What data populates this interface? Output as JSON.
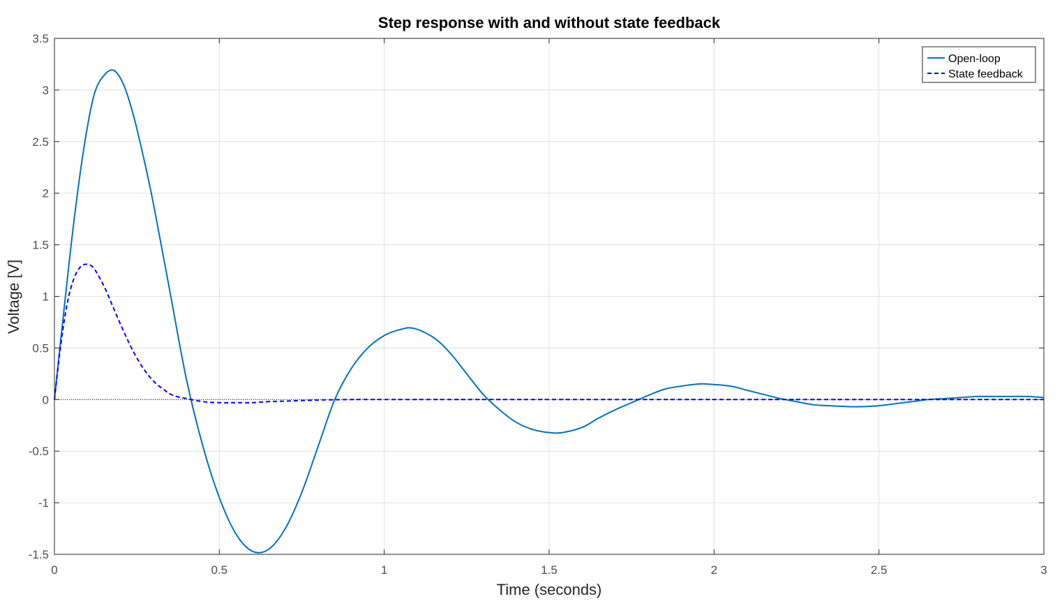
{
  "chart_data": {
    "type": "line",
    "title": "Step response with and without state feedback",
    "xlabel": "Time (seconds)",
    "ylabel": "Voltage [V]",
    "xlim": [
      0,
      3
    ],
    "ylim": [
      -1.5,
      3.5
    ],
    "xticks": [
      0,
      0.5,
      1,
      1.5,
      2,
      2.5,
      3
    ],
    "xtick_labels": [
      "0",
      "0.5",
      "1",
      "1.5",
      "2",
      "2.5",
      "3"
    ],
    "yticks": [
      -1.5,
      -1,
      -0.5,
      0,
      0.5,
      1,
      1.5,
      2,
      2.5,
      3,
      3.5
    ],
    "ytick_labels": [
      "-1.5",
      "-1",
      "-0.5",
      "0",
      "0.5",
      "1",
      "1.5",
      "2",
      "2.5",
      "3",
      "3.5"
    ],
    "grid": true,
    "legend_position": "top-right",
    "series": [
      {
        "name": "Open-loop",
        "style": "solid",
        "color": "#0072BD",
        "x": [
          0,
          0.03,
          0.06,
          0.09,
          0.12,
          0.15,
          0.18,
          0.21,
          0.24,
          0.27,
          0.3,
          0.35,
          0.4,
          0.45,
          0.5,
          0.55,
          0.6,
          0.65,
          0.7,
          0.75,
          0.8,
          0.85,
          0.9,
          0.95,
          1.0,
          1.05,
          1.09,
          1.15,
          1.2,
          1.25,
          1.3,
          1.35,
          1.4,
          1.45,
          1.5,
          1.54,
          1.6,
          1.65,
          1.7,
          1.75,
          1.8,
          1.85,
          1.9,
          1.95,
          1.98,
          2.05,
          2.1,
          2.15,
          2.2,
          2.25,
          2.3,
          2.35,
          2.43,
          2.5,
          2.55,
          2.6,
          2.65,
          2.7,
          2.75,
          2.8,
          2.87,
          2.95,
          3.0
        ],
        "y": [
          0,
          0.9,
          1.75,
          2.45,
          2.95,
          3.14,
          3.19,
          3.05,
          2.75,
          2.35,
          1.9,
          1.05,
          0.2,
          -0.45,
          -0.95,
          -1.3,
          -1.47,
          -1.45,
          -1.25,
          -0.9,
          -0.45,
          0.0,
          0.3,
          0.5,
          0.62,
          0.68,
          0.69,
          0.6,
          0.45,
          0.25,
          0.05,
          -0.1,
          -0.22,
          -0.29,
          -0.32,
          -0.32,
          -0.27,
          -0.18,
          -0.1,
          -0.03,
          0.04,
          0.1,
          0.13,
          0.15,
          0.15,
          0.13,
          0.09,
          0.05,
          0.01,
          -0.02,
          -0.05,
          -0.06,
          -0.07,
          -0.06,
          -0.04,
          -0.02,
          0.0,
          0.01,
          0.02,
          0.03,
          0.03,
          0.03,
          0.02
        ]
      },
      {
        "name": "State feedback",
        "style": "dashed",
        "color": "#0000FF",
        "x": [
          0,
          0.02,
          0.04,
          0.06,
          0.08,
          0.1,
          0.12,
          0.15,
          0.18,
          0.21,
          0.24,
          0.27,
          0.3,
          0.33,
          0.36,
          0.4,
          0.45,
          0.5,
          0.55,
          0.6,
          0.65,
          0.7,
          0.8,
          0.9,
          1.0,
          1.5,
          2.0,
          2.5,
          3.0
        ],
        "y": [
          0,
          0.55,
          0.95,
          1.18,
          1.29,
          1.31,
          1.27,
          1.1,
          0.88,
          0.66,
          0.46,
          0.3,
          0.18,
          0.1,
          0.04,
          0.01,
          -0.02,
          -0.03,
          -0.03,
          -0.03,
          -0.02,
          -0.015,
          -0.005,
          0.0,
          0.0,
          0.0,
          0.0,
          0.0,
          0.0
        ]
      }
    ]
  }
}
